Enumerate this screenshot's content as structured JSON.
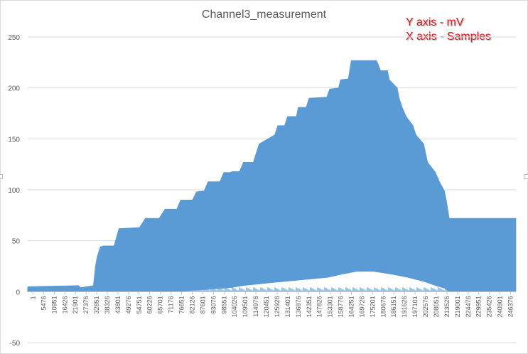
{
  "chart_data": {
    "type": "area",
    "title": "Channel3_measurement",
    "annotations": [
      "Y axis - mV",
      "X axis - Samples"
    ],
    "series_color": "#5b9bd5",
    "annotation_color": "#e8141b",
    "ylim": [
      -50,
      250
    ],
    "y_ticks": [
      -50,
      0,
      50,
      100,
      150,
      200,
      250
    ],
    "grid": true,
    "legend": "none",
    "x_tick_labels": [
      "1",
      "5476",
      "10951",
      "16426",
      "21901",
      "27376",
      "32851",
      "38326",
      "43801",
      "49276",
      "54751",
      "60226",
      "65701",
      "71176",
      "76651",
      "82126",
      "87601",
      "93076",
      "98551",
      "104026",
      "109501",
      "114976",
      "120451",
      "125926",
      "131401",
      "136876",
      "142351",
      "147826",
      "153301",
      "158776",
      "164251",
      "169726",
      "175201",
      "180676",
      "186151",
      "191626",
      "197101",
      "202576",
      "208051",
      "213526",
      "219001",
      "224476",
      "229951",
      "235426",
      "240901",
      "246376"
    ],
    "x_range": [
      1,
      249000
    ],
    "upper_envelope": {
      "x": [
        1,
        26000,
        27000,
        33500,
        34500,
        35500,
        37000,
        38500,
        44000,
        46500,
        57000,
        60000,
        67000,
        70000,
        76000,
        78000,
        84000,
        86000,
        90000,
        92000,
        98000,
        100000,
        103000,
        104500,
        108000,
        110000,
        115000,
        118000,
        126000,
        127500,
        131000,
        132500,
        137000,
        138000,
        142000,
        143500,
        152500,
        154000,
        158500,
        159500,
        163500,
        165000,
        178000,
        180000,
        183500,
        184500,
        188500,
        189500,
        191000,
        193000,
        196500,
        198000,
        202000,
        204000,
        208000,
        210000,
        212500,
        213500,
        215000,
        249000
      ],
      "y": [
        5,
        6,
        4,
        6,
        25,
        35,
        44,
        45,
        45,
        62,
        63,
        72,
        72,
        81,
        81,
        90,
        90,
        98,
        99,
        108,
        108,
        117,
        117,
        118,
        118,
        127,
        127,
        145,
        154,
        163,
        163,
        172,
        172,
        181,
        181,
        190,
        191,
        199,
        200,
        208,
        209,
        227,
        227,
        217,
        217,
        208,
        200,
        190,
        181,
        172,
        163,
        154,
        145,
        127,
        117,
        108,
        99,
        90,
        72,
        72
      ]
    },
    "lower_envelope": {
      "x": [
        1,
        76000,
        82000,
        90000,
        98000,
        104000,
        110000,
        120000,
        131000,
        142000,
        153000,
        160000,
        168000,
        176000,
        186000,
        194000,
        202000,
        208000,
        213000,
        215000,
        249000
      ],
      "y": [
        0,
        0,
        1,
        2,
        3,
        4,
        6,
        8,
        10,
        12,
        14,
        17,
        20,
        20,
        17,
        14,
        10,
        6,
        3,
        0,
        0
      ]
    }
  }
}
